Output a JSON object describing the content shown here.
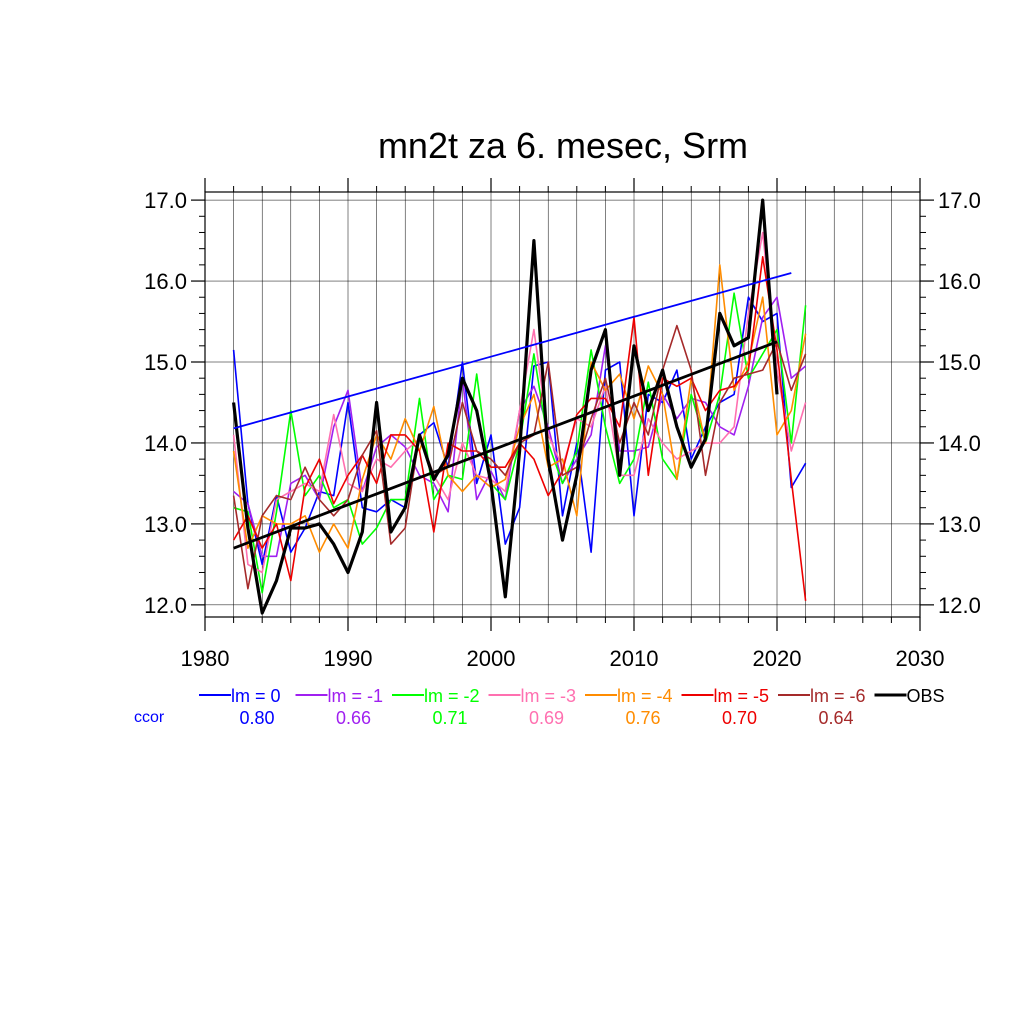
{
  "chart_data": {
    "type": "line",
    "title": "mn2t za 6. mesec, Srm",
    "xlabel": "",
    "ylabel": "",
    "xlim": [
      1980,
      2030
    ],
    "ylim": [
      11.85,
      17.1
    ],
    "x_ticks": [
      1980,
      1990,
      2000,
      2010,
      2020,
      2030
    ],
    "x_tick_labels": [
      "1980",
      "1990",
      "2000",
      "2010",
      "2020",
      "2030"
    ],
    "y_ticks": [
      12.0,
      13.0,
      14.0,
      15.0,
      16.0,
      17.0
    ],
    "y_tick_labels": [
      "12.0",
      "13.0",
      "14.0",
      "15.0",
      "16.0",
      "17.0"
    ],
    "grid": true,
    "ccor_label": "ccor",
    "series": [
      {
        "name": "lm = 0",
        "ccor": "0.80",
        "color": "#0000ff",
        "x_start": 1982,
        "values": [
          15.15,
          13.25,
          12.5,
          13.35,
          12.65,
          12.95,
          13.4,
          13.35,
          14.5,
          13.2,
          13.15,
          13.3,
          13.2,
          14.1,
          14.25,
          13.7,
          15.0,
          13.5,
          14.1,
          12.75,
          13.2,
          14.95,
          15.0,
          13.1,
          14.0,
          12.65,
          14.9,
          15.0,
          13.1,
          14.6,
          14.5,
          14.9,
          13.8,
          14.2,
          14.5,
          14.6,
          15.8,
          15.5,
          15.6,
          13.45,
          13.75
        ]
      },
      {
        "name": "lm = -1",
        "ccor": "0.66",
        "color": "#a020f0",
        "x_start": 1982,
        "values": [
          13.4,
          13.25,
          12.6,
          12.6,
          13.5,
          13.6,
          13.3,
          14.2,
          14.65,
          13.4,
          13.95,
          14.1,
          13.95,
          13.6,
          13.5,
          13.15,
          14.8,
          13.3,
          13.65,
          13.3,
          14.4,
          14.7,
          14.2,
          13.5,
          13.8,
          14.1,
          15.2,
          13.9,
          13.9,
          13.95,
          14.6,
          14.3,
          14.55,
          14.5,
          14.2,
          14.1,
          14.7,
          15.55,
          15.8,
          14.8,
          14.95
        ]
      },
      {
        "name": "lm = -2",
        "ccor": "0.71",
        "color": "#00ff00",
        "x_start": 1982,
        "values": [
          13.2,
          13.15,
          12.15,
          13.15,
          14.4,
          13.35,
          13.6,
          13.2,
          13.3,
          12.75,
          12.95,
          13.3,
          13.3,
          14.55,
          13.3,
          13.6,
          13.55,
          14.85,
          13.5,
          13.3,
          14.0,
          15.1,
          14.0,
          13.5,
          13.9,
          15.15,
          14.2,
          13.5,
          13.8,
          14.75,
          13.8,
          13.55,
          14.6,
          14.0,
          14.6,
          15.85,
          14.8,
          15.1,
          15.4,
          14.0,
          15.7
        ]
      },
      {
        "name": "lm = -3",
        "ccor": "0.69",
        "color": "#ff70b0",
        "x_start": 1982,
        "values": [
          14.1,
          12.5,
          12.4,
          13.3,
          13.4,
          13.5,
          13.4,
          14.35,
          13.5,
          13.4,
          13.8,
          13.7,
          13.9,
          14.05,
          13.6,
          13.3,
          14.0,
          13.6,
          13.55,
          13.4,
          14.4,
          15.4,
          14.1,
          13.7,
          14.3,
          14.2,
          14.7,
          13.6,
          13.6,
          14.3,
          14.0,
          13.8,
          13.9,
          14.0,
          14.0,
          14.2,
          15.6,
          16.6,
          14.9,
          13.9,
          14.5
        ]
      },
      {
        "name": "lm = -4",
        "ccor": "0.76",
        "color": "#ff8c00",
        "x_start": 1982,
        "values": [
          13.9,
          12.7,
          13.1,
          13.0,
          13.0,
          13.1,
          12.65,
          13.0,
          12.7,
          13.55,
          14.1,
          13.8,
          14.3,
          13.9,
          14.45,
          13.6,
          13.4,
          13.6,
          13.45,
          13.55,
          14.2,
          14.6,
          13.7,
          13.8,
          13.1,
          15.0,
          14.65,
          14.85,
          14.3,
          14.95,
          14.6,
          13.55,
          14.8,
          14.0,
          16.2,
          14.65,
          15.0,
          15.8,
          14.1,
          14.4,
          15.35
        ]
      },
      {
        "name": "lm = -5",
        "ccor": "0.70",
        "color": "#ee0000",
        "x_start": 1982,
        "values": [
          12.8,
          13.1,
          12.7,
          13.0,
          12.3,
          13.45,
          13.8,
          13.25,
          13.6,
          13.85,
          13.5,
          14.1,
          14.1,
          13.9,
          12.9,
          14.0,
          13.9,
          13.9,
          13.7,
          13.7,
          14.0,
          13.8,
          13.35,
          13.65,
          14.35,
          14.55,
          14.55,
          14.2,
          15.55,
          13.6,
          14.8,
          14.7,
          14.8,
          14.4,
          14.65,
          14.7,
          14.9,
          16.3,
          15.15,
          13.55,
          12.05
        ]
      },
      {
        "name": "lm = -6",
        "ccor": "0.64",
        "color": "#a52a2a",
        "x_start": 1982,
        "values": [
          13.35,
          12.2,
          13.1,
          13.35,
          13.3,
          13.7,
          13.3,
          13.1,
          13.3,
          13.85,
          14.15,
          12.75,
          12.95,
          14.1,
          13.6,
          13.7,
          14.5,
          13.9,
          13.8,
          13.6,
          14.0,
          14.1,
          15.0,
          13.6,
          13.7,
          14.3,
          14.8,
          14.0,
          14.5,
          14.1,
          14.9,
          15.45,
          14.9,
          13.6,
          14.5,
          14.8,
          14.85,
          14.9,
          15.25,
          14.65,
          15.1
        ]
      },
      {
        "name": "OBS",
        "ccor": "",
        "color": "#000000",
        "x_start": 1982,
        "values": [
          14.5,
          12.95,
          11.9,
          12.3,
          12.95,
          12.95,
          13.0,
          12.75,
          12.4,
          12.9,
          14.5,
          12.9,
          13.2,
          14.1,
          13.55,
          13.85,
          14.8,
          14.4,
          13.5,
          12.1,
          13.9,
          16.5,
          13.8,
          12.8,
          13.6,
          14.9,
          15.4,
          13.6,
          15.2,
          14.4,
          14.9,
          14.2,
          13.7,
          14.05,
          15.6,
          15.2,
          15.3,
          17.0,
          14.6
        ]
      }
    ],
    "trend_lines": [
      {
        "name": "lm = 0 trend",
        "color": "#0000ff",
        "x": [
          1982,
          2021
        ],
        "y": [
          14.18,
          16.1
        ]
      },
      {
        "name": "OBS trend",
        "color": "#000000",
        "x": [
          1982,
          2020
        ],
        "y": [
          12.7,
          15.25
        ]
      }
    ]
  }
}
